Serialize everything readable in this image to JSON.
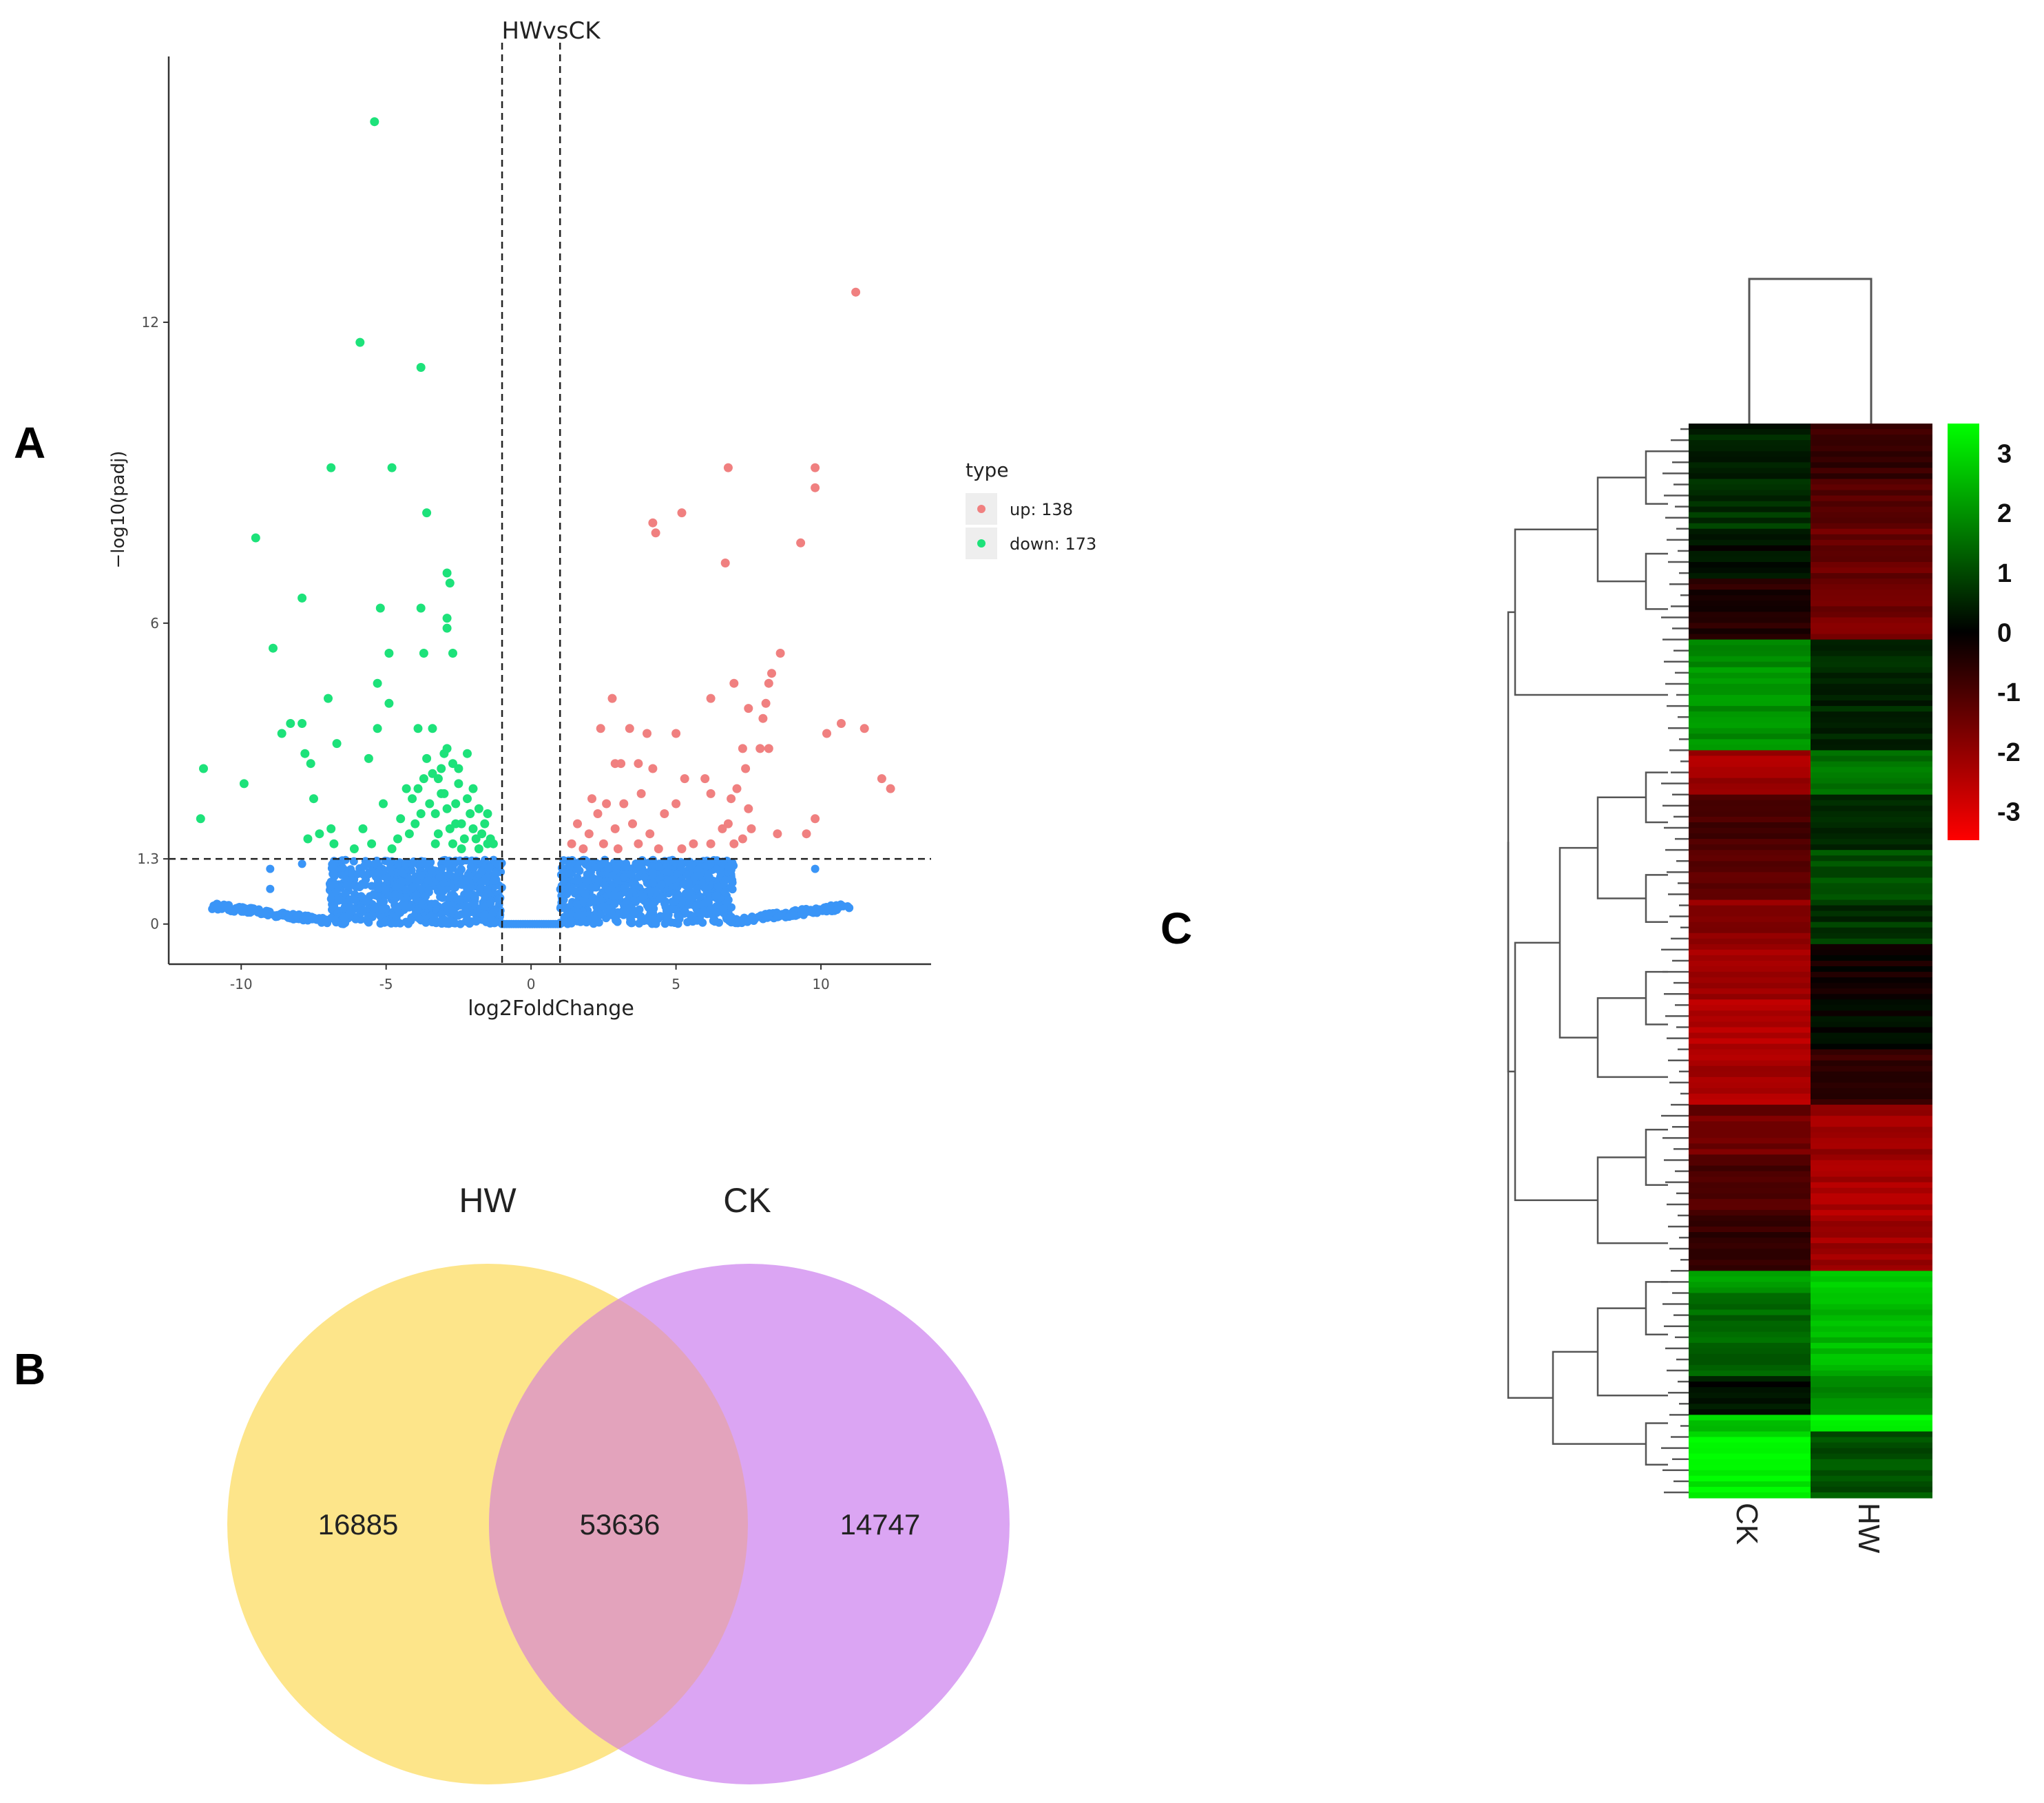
{
  "panels": {
    "a": "A",
    "b": "B",
    "c": "C"
  },
  "chart_data": [
    {
      "type": "scatter",
      "panel": "A",
      "title": "HWvsCK",
      "xlabel": "log2FoldChange",
      "ylabel": "−log10(padj)",
      "xlim": [
        -12.5,
        13.8
      ],
      "ylim": [
        -0.8,
        17.3
      ],
      "x_ticks": [
        -10,
        -5,
        0,
        5,
        10
      ],
      "x_tick_labels": [
        "-10",
        "-5",
        "0",
        "5",
        "10"
      ],
      "y_ticks": [
        0,
        1.3,
        6,
        12
      ],
      "y_tick_labels": [
        "0",
        "1.3",
        "6",
        "12"
      ],
      "thresholds": {
        "log2fc": [
          -1,
          1
        ],
        "padj_log": 1.3
      },
      "grid": false,
      "legend": {
        "title": "type",
        "position": "right",
        "entries": [
          {
            "label": "up: 138",
            "color": "#f08080"
          },
          {
            "label": "down: 173",
            "color": "#1de27a"
          }
        ]
      },
      "colors": {
        "up": "#f08080",
        "down": "#1de27a",
        "ns": "#3a95f7"
      },
      "series": [
        {
          "name": "down",
          "points": [
            [
              -5.4,
              16.0
            ],
            [
              -5.9,
              11.6
            ],
            [
              -3.8,
              11.1
            ],
            [
              -6.9,
              9.1
            ],
            [
              -4.8,
              9.1
            ],
            [
              -3.6,
              8.2
            ],
            [
              -9.5,
              7.7
            ],
            [
              -2.9,
              7.0
            ],
            [
              -2.8,
              6.8
            ],
            [
              -7.9,
              6.5
            ],
            [
              -5.2,
              6.3
            ],
            [
              -3.8,
              6.3
            ],
            [
              -2.9,
              6.1
            ],
            [
              -2.9,
              5.9
            ],
            [
              -8.9,
              5.5
            ],
            [
              -4.9,
              5.4
            ],
            [
              -3.7,
              5.4
            ],
            [
              -2.7,
              5.4
            ],
            [
              -5.3,
              4.8
            ],
            [
              -7.0,
              4.5
            ],
            [
              -4.9,
              4.4
            ],
            [
              -8.3,
              4.0
            ],
            [
              -7.9,
              4.0
            ],
            [
              -5.3,
              3.9
            ],
            [
              -3.9,
              3.9
            ],
            [
              -3.4,
              3.9
            ],
            [
              -8.6,
              3.8
            ],
            [
              -6.7,
              3.6
            ],
            [
              -7.8,
              3.4
            ],
            [
              -5.6,
              3.3
            ],
            [
              -11.3,
              3.1
            ],
            [
              -7.6,
              3.2
            ],
            [
              -9.9,
              2.8
            ],
            [
              -7.5,
              2.5
            ],
            [
              -11.4,
              2.1
            ],
            [
              -5.1,
              2.4
            ],
            [
              -4.5,
              2.1
            ],
            [
              -7.3,
              1.8
            ],
            [
              -6.9,
              1.9
            ],
            [
              -6.8,
              1.6
            ],
            [
              -7.7,
              1.7
            ],
            [
              -4.3,
              2.7
            ],
            [
              -4.1,
              2.5
            ],
            [
              -3.8,
              2.2
            ],
            [
              -3.7,
              2.9
            ],
            [
              -3.4,
              3.0
            ],
            [
              -3.3,
              2.2
            ],
            [
              -3.2,
              1.8
            ],
            [
              -3.1,
              3.1
            ],
            [
              -3.1,
              2.6
            ],
            [
              -2.9,
              2.3
            ],
            [
              -2.8,
              1.9
            ],
            [
              -2.7,
              3.2
            ],
            [
              -2.6,
              2.4
            ],
            [
              -2.5,
              2.8
            ],
            [
              -2.4,
              2.0
            ],
            [
              -2.3,
              1.7
            ],
            [
              -2.2,
              2.5
            ],
            [
              -2.1,
              2.2
            ],
            [
              -2.0,
              1.9
            ],
            [
              -1.9,
              1.7
            ],
            [
              -1.8,
              2.3
            ],
            [
              -1.7,
              1.8
            ],
            [
              -1.6,
              2.0
            ],
            [
              -1.5,
              1.6
            ],
            [
              -1.4,
              1.7
            ],
            [
              -2.6,
              2.0
            ],
            [
              -3.0,
              2.6
            ],
            [
              -3.5,
              2.4
            ],
            [
              -4.0,
              2.0
            ],
            [
              -4.6,
              1.7
            ],
            [
              -2.2,
              3.4
            ],
            [
              -2.9,
              3.5
            ],
            [
              -3.6,
              3.3
            ],
            [
              -2.4,
              1.5
            ],
            [
              -1.8,
              1.5
            ],
            [
              -3.3,
              1.6
            ],
            [
              -2.7,
              1.6
            ],
            [
              -4.8,
              1.5
            ],
            [
              -5.5,
              1.6
            ],
            [
              -6.1,
              1.5
            ],
            [
              -1.3,
              1.6
            ],
            [
              -1.5,
              2.2
            ],
            [
              -2.0,
              2.7
            ],
            [
              -2.5,
              3.1
            ],
            [
              -3.0,
              3.4
            ],
            [
              -3.2,
              2.9
            ],
            [
              -3.9,
              2.7
            ],
            [
              -4.2,
              1.8
            ],
            [
              -5.8,
              1.9
            ]
          ]
        },
        {
          "name": "up",
          "points": [
            [
              11.2,
              12.6
            ],
            [
              6.8,
              9.1
            ],
            [
              9.8,
              9.1
            ],
            [
              9.8,
              8.7
            ],
            [
              5.2,
              8.2
            ],
            [
              4.2,
              8.0
            ],
            [
              4.3,
              7.8
            ],
            [
              9.3,
              7.6
            ],
            [
              6.7,
              7.2
            ],
            [
              8.6,
              5.4
            ],
            [
              8.3,
              5.0
            ],
            [
              8.2,
              4.8
            ],
            [
              7.0,
              4.8
            ],
            [
              6.2,
              4.5
            ],
            [
              2.8,
              4.5
            ],
            [
              8.1,
              4.4
            ],
            [
              7.5,
              4.3
            ],
            [
              10.7,
              4.0
            ],
            [
              8.0,
              4.1
            ],
            [
              2.4,
              3.9
            ],
            [
              3.4,
              3.9
            ],
            [
              11.5,
              3.9
            ],
            [
              5.0,
              3.8
            ],
            [
              10.2,
              3.8
            ],
            [
              4.0,
              3.8
            ],
            [
              7.3,
              3.5
            ],
            [
              7.9,
              3.5
            ],
            [
              8.2,
              3.5
            ],
            [
              2.9,
              3.2
            ],
            [
              3.1,
              3.2
            ],
            [
              3.7,
              3.2
            ],
            [
              12.1,
              2.9
            ],
            [
              12.4,
              2.7
            ],
            [
              5.3,
              2.9
            ],
            [
              6.0,
              2.9
            ],
            [
              4.2,
              3.1
            ],
            [
              7.4,
              3.1
            ],
            [
              3.8,
              2.6
            ],
            [
              6.2,
              2.6
            ],
            [
              6.9,
              2.5
            ],
            [
              7.1,
              2.7
            ],
            [
              2.1,
              2.5
            ],
            [
              2.6,
              2.4
            ],
            [
              3.2,
              2.4
            ],
            [
              4.6,
              2.2
            ],
            [
              5.0,
              2.4
            ],
            [
              7.5,
              2.3
            ],
            [
              8.5,
              1.8
            ],
            [
              9.5,
              1.8
            ],
            [
              9.8,
              2.1
            ],
            [
              1.6,
              2.0
            ],
            [
              2.0,
              1.8
            ],
            [
              2.3,
              2.2
            ],
            [
              2.9,
              1.9
            ],
            [
              3.5,
              2.0
            ],
            [
              4.1,
              1.8
            ],
            [
              5.6,
              1.6
            ],
            [
              6.6,
              1.9
            ],
            [
              7.0,
              1.6
            ],
            [
              7.3,
              1.7
            ],
            [
              1.4,
              1.6
            ],
            [
              1.8,
              1.5
            ],
            [
              2.5,
              1.6
            ],
            [
              3.0,
              1.5
            ],
            [
              3.7,
              1.6
            ],
            [
              4.4,
              1.5
            ],
            [
              5.2,
              1.5
            ],
            [
              6.2,
              1.6
            ],
            [
              6.8,
              2.0
            ],
            [
              7.6,
              1.9
            ]
          ]
        },
        {
          "name": "ns",
          "generated": "dense cloud of non-significant genes (|log2FC| < 1 or padj > 0.05) forming a U-shape between y=0 and y=1.3, spanning x from about -11 to 11"
        }
      ]
    },
    {
      "type": "venn",
      "panel": "B",
      "sets": [
        {
          "name": "HW",
          "only": 16885,
          "color": "#fde58a"
        },
        {
          "name": "CK",
          "only": 14747,
          "color": "#dba5f3"
        }
      ],
      "labels": [
        "16885",
        "53636",
        "14747"
      ],
      "intersection": 53636,
      "overlap_color": "#e3a3bc"
    },
    {
      "type": "heatmap",
      "panel": "C",
      "columns": [
        "CK",
        "HW"
      ],
      "colorbar": {
        "min": -3,
        "max": 3,
        "ticks": [
          "3",
          "2",
          "1",
          "0",
          "-1",
          "-2",
          "-3"
        ],
        "colors": [
          "#00ff00",
          "#000000",
          "#ff0000"
        ]
      },
      "clusters": [
        {
          "rows": 10,
          "CK": 0.4,
          "HW": -0.6
        },
        {
          "rows": 9,
          "CK": 0.6,
          "HW": -1.0
        },
        {
          "rows": 9,
          "CK": 0.1,
          "HW": -1.2
        },
        {
          "rows": 11,
          "CK": -0.4,
          "HW": -1.4
        },
        {
          "rows": 20,
          "CK": 1.7,
          "HW": 0.4
        },
        {
          "rows": 8,
          "CK": -1.9,
          "HW": 1.4
        },
        {
          "rows": 10,
          "CK": -0.8,
          "HW": 0.5
        },
        {
          "rows": 9,
          "CK": -1.1,
          "HW": 0.9
        },
        {
          "rows": 8,
          "CK": -1.6,
          "HW": 0.6
        },
        {
          "rows": 10,
          "CK": -1.9,
          "HW": -0.2
        },
        {
          "rows": 9,
          "CK": -2.1,
          "HW": 0.1
        },
        {
          "rows": 10,
          "CK": -2.0,
          "HW": -0.6
        },
        {
          "rows": 9,
          "CK": -1.3,
          "HW": -1.8
        },
        {
          "rows": 11,
          "CK": -0.9,
          "HW": -2.0
        },
        {
          "rows": 10,
          "CK": -0.6,
          "HW": -1.9
        },
        {
          "rows": 4,
          "CK": 1.9,
          "HW": 2.4
        },
        {
          "rows": 15,
          "CK": 1.2,
          "HW": 2.2
        },
        {
          "rows": 7,
          "CK": 0.2,
          "HW": 1.7
        },
        {
          "rows": 3,
          "CK": 2.4,
          "HW": 3.0
        },
        {
          "rows": 12,
          "CK": 2.8,
          "HW": 1.0
        }
      ]
    }
  ]
}
